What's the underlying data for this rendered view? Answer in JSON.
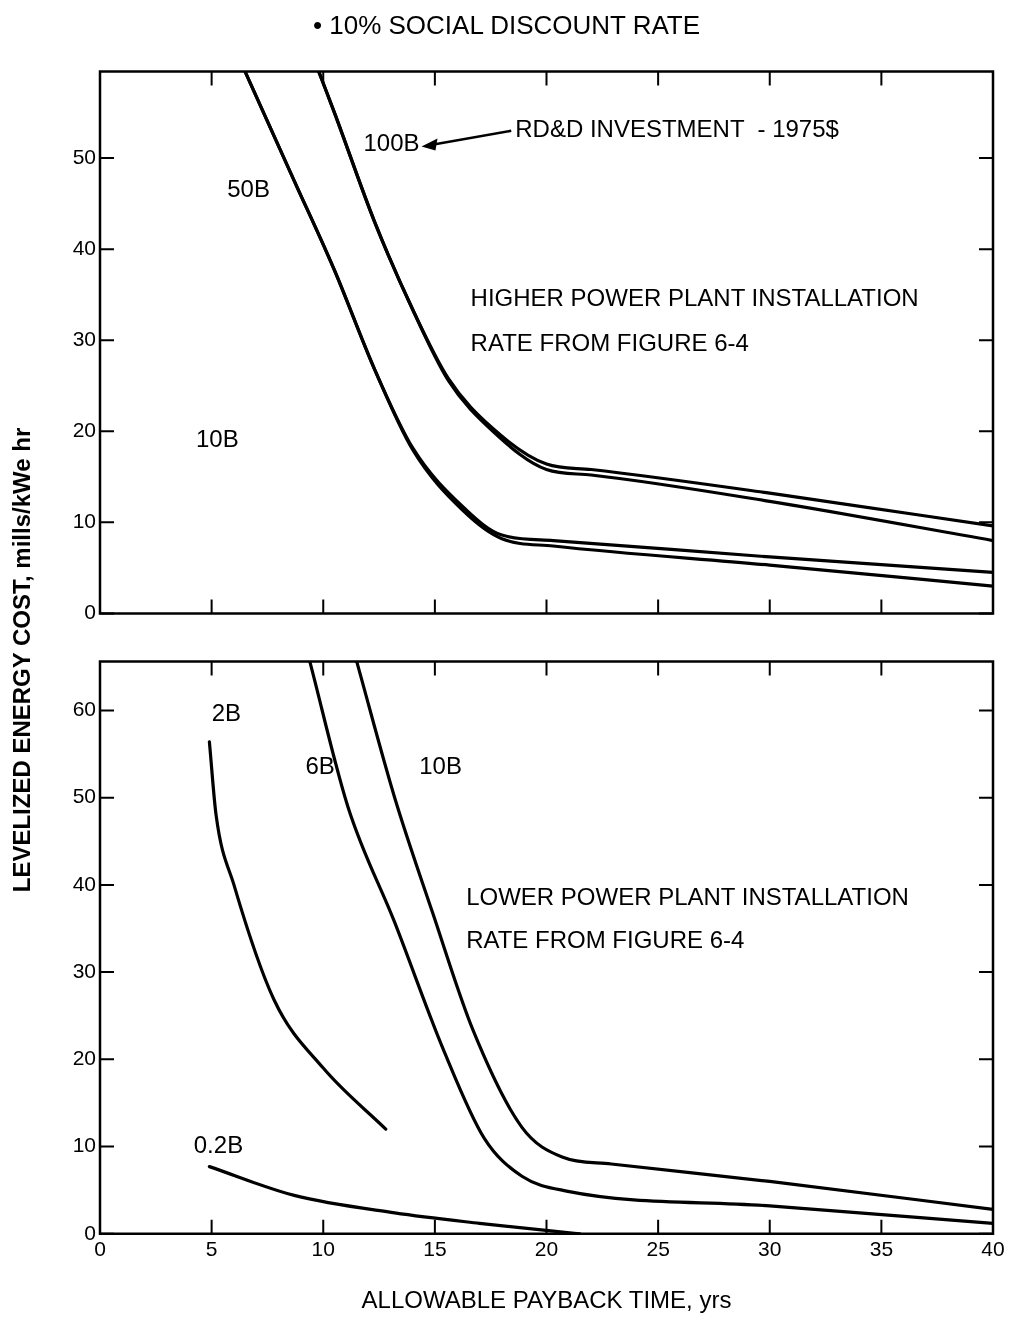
{
  "chart_data": [
    {
      "type": "line",
      "title": "• 10% SOCIAL DISCOUNT RATE",
      "ylabel": "LEVELIZED ENERGY COST, mills/kWe hr",
      "xlim": [
        0,
        40
      ],
      "xticks": [
        0,
        5,
        10,
        15,
        20,
        25,
        30,
        35,
        40
      ],
      "ylim": [
        0,
        59.5
      ],
      "yticks": [
        0,
        10,
        20,
        30,
        40,
        50
      ],
      "tick_labels": "y",
      "grid": false,
      "legend": false,
      "marker": "none",
      "line_style": "solid",
      "series": [
        {
          "color": "#000000",
          "x": [
            9.8,
            10.5,
            12.3,
            14,
            15.6,
            17.6,
            20,
            22,
            30,
            40
          ],
          "values": [
            59.5,
            55,
            43,
            33.4,
            25.8,
            20.3,
            16.4,
            15.8,
            13.2,
            9.6
          ]
        },
        {
          "color": "#000000",
          "x": [
            9.8,
            10.5,
            12.3,
            14,
            15.6,
            17.6,
            20,
            22,
            30,
            40
          ],
          "values": [
            59.5,
            55,
            43,
            33.4,
            25.6,
            20,
            15.8,
            15.2,
            12.3,
            8
          ]
        },
        {
          "color": "#000000",
          "x": [
            6.5,
            8.7,
            10.5,
            12.3,
            14,
            16.3,
            18,
            20.3,
            30,
            40
          ],
          "values": [
            59.5,
            47.5,
            37.7,
            26.8,
            18.2,
            11.6,
            8.6,
            8,
            6.2,
            4.5
          ]
        },
        {
          "color": "#000000",
          "x": [
            6.5,
            8.7,
            10.5,
            12.3,
            14,
            16.3,
            18,
            20.3,
            30,
            40
          ],
          "values": [
            59.5,
            47.5,
            37.7,
            26.8,
            18,
            11.2,
            8.2,
            7.4,
            5.3,
            3
          ]
        }
      ],
      "annotations": [
        "50B",
        "100B",
        "10B",
        "RD&D INVESTMENT  - 1975$",
        "HIGHER POWER PLANT INSTALLATION",
        "RATE FROM FIGURE 6-4"
      ]
    },
    {
      "type": "line",
      "xlabel": "ALLOWABLE PAYBACK TIME, yrs",
      "xlim": [
        0,
        40
      ],
      "xticks": [
        0,
        5,
        10,
        15,
        20,
        25,
        30,
        35,
        40
      ],
      "ylim": [
        0,
        65.6
      ],
      "yticks": [
        0,
        10,
        20,
        30,
        40,
        50,
        60
      ],
      "grid": false,
      "legend": false,
      "marker": "none",
      "line_style": "solid",
      "series": [
        {
          "color": "#000000",
          "x": [
            4.9,
            5.2,
            6,
            7.8,
            10,
            12.8
          ],
          "values": [
            56.4,
            48,
            40,
            26.8,
            19,
            12
          ]
        },
        {
          "color": "#000000",
          "x": [
            9.4,
            11.1,
            13.2,
            15.4,
            17.2,
            18.9,
            20.9,
            30,
            40
          ],
          "values": [
            65.6,
            49,
            35.7,
            21,
            11,
            6.6,
            4.9,
            3.2,
            1.2
          ]
        },
        {
          "color": "#000000",
          "x": [
            11.5,
            13.2,
            14.9,
            16.7,
            18.9,
            20.7,
            22.9,
            30,
            40
          ],
          "values": [
            65.6,
            50,
            36.8,
            23.4,
            12.2,
            8.8,
            8,
            6,
            2.8
          ]
        },
        {
          "color": "#000000",
          "x": [
            4.9,
            8.7,
            13.2,
            17,
            20.3,
            21.5
          ],
          "values": [
            7.7,
            4.4,
            2.4,
            1.2,
            0.3,
            0
          ]
        }
      ],
      "annotations": [
        "2B",
        "6B",
        "10B",
        "0.2B",
        "LOWER POWER PLANT INSTALLATION",
        "RATE FROM FIGURE 6-4"
      ]
    }
  ]
}
